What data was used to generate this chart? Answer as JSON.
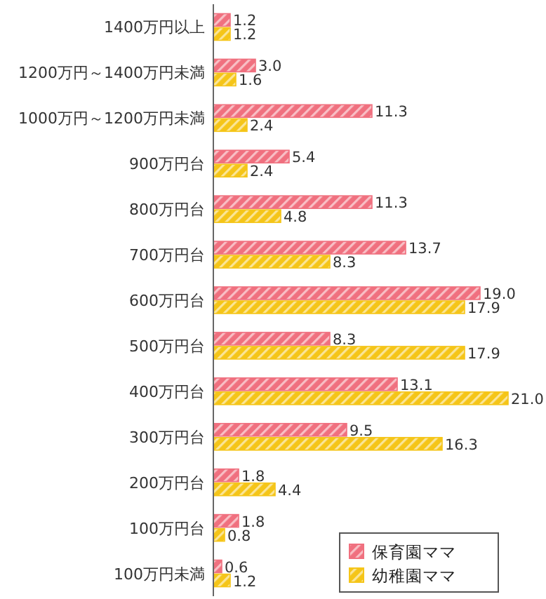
{
  "chart_data": {
    "type": "bar",
    "orientation": "horizontal",
    "categories": [
      "1400万円以上",
      "1200万円～1400万円未満",
      "1000万円～1200万円未満",
      "900万円台",
      "800万円台",
      "700万円台",
      "600万円台",
      "500万円台",
      "400万円台",
      "300万円台",
      "200万円台",
      "100万円台",
      "100万円未満"
    ],
    "series": [
      {
        "name": "保育園ママ",
        "color": "#f0707f",
        "values": [
          1.2,
          3.0,
          11.3,
          5.4,
          11.3,
          13.7,
          19.0,
          8.3,
          13.1,
          9.5,
          1.8,
          1.8,
          0.6
        ],
        "value_labels": [
          "1.2",
          "3.0",
          "11.3",
          "5.4",
          "11.3",
          "13.7",
          "19.0",
          "8.3",
          "13.1",
          "9.5",
          "1.8",
          "1.8",
          "0.6"
        ]
      },
      {
        "name": "幼稚園ママ",
        "color": "#f5c518",
        "values": [
          1.2,
          1.6,
          2.4,
          2.4,
          4.8,
          8.3,
          17.9,
          17.9,
          21.0,
          16.3,
          4.4,
          0.8,
          1.2
        ],
        "value_labels": [
          "1.2",
          "1.6",
          "2.4",
          "2.4",
          "4.8",
          "8.3",
          "17.9",
          "17.9",
          "21.0",
          "16.3",
          "4.4",
          "0.8",
          "1.2"
        ]
      }
    ],
    "legend": "bottom right"
  }
}
